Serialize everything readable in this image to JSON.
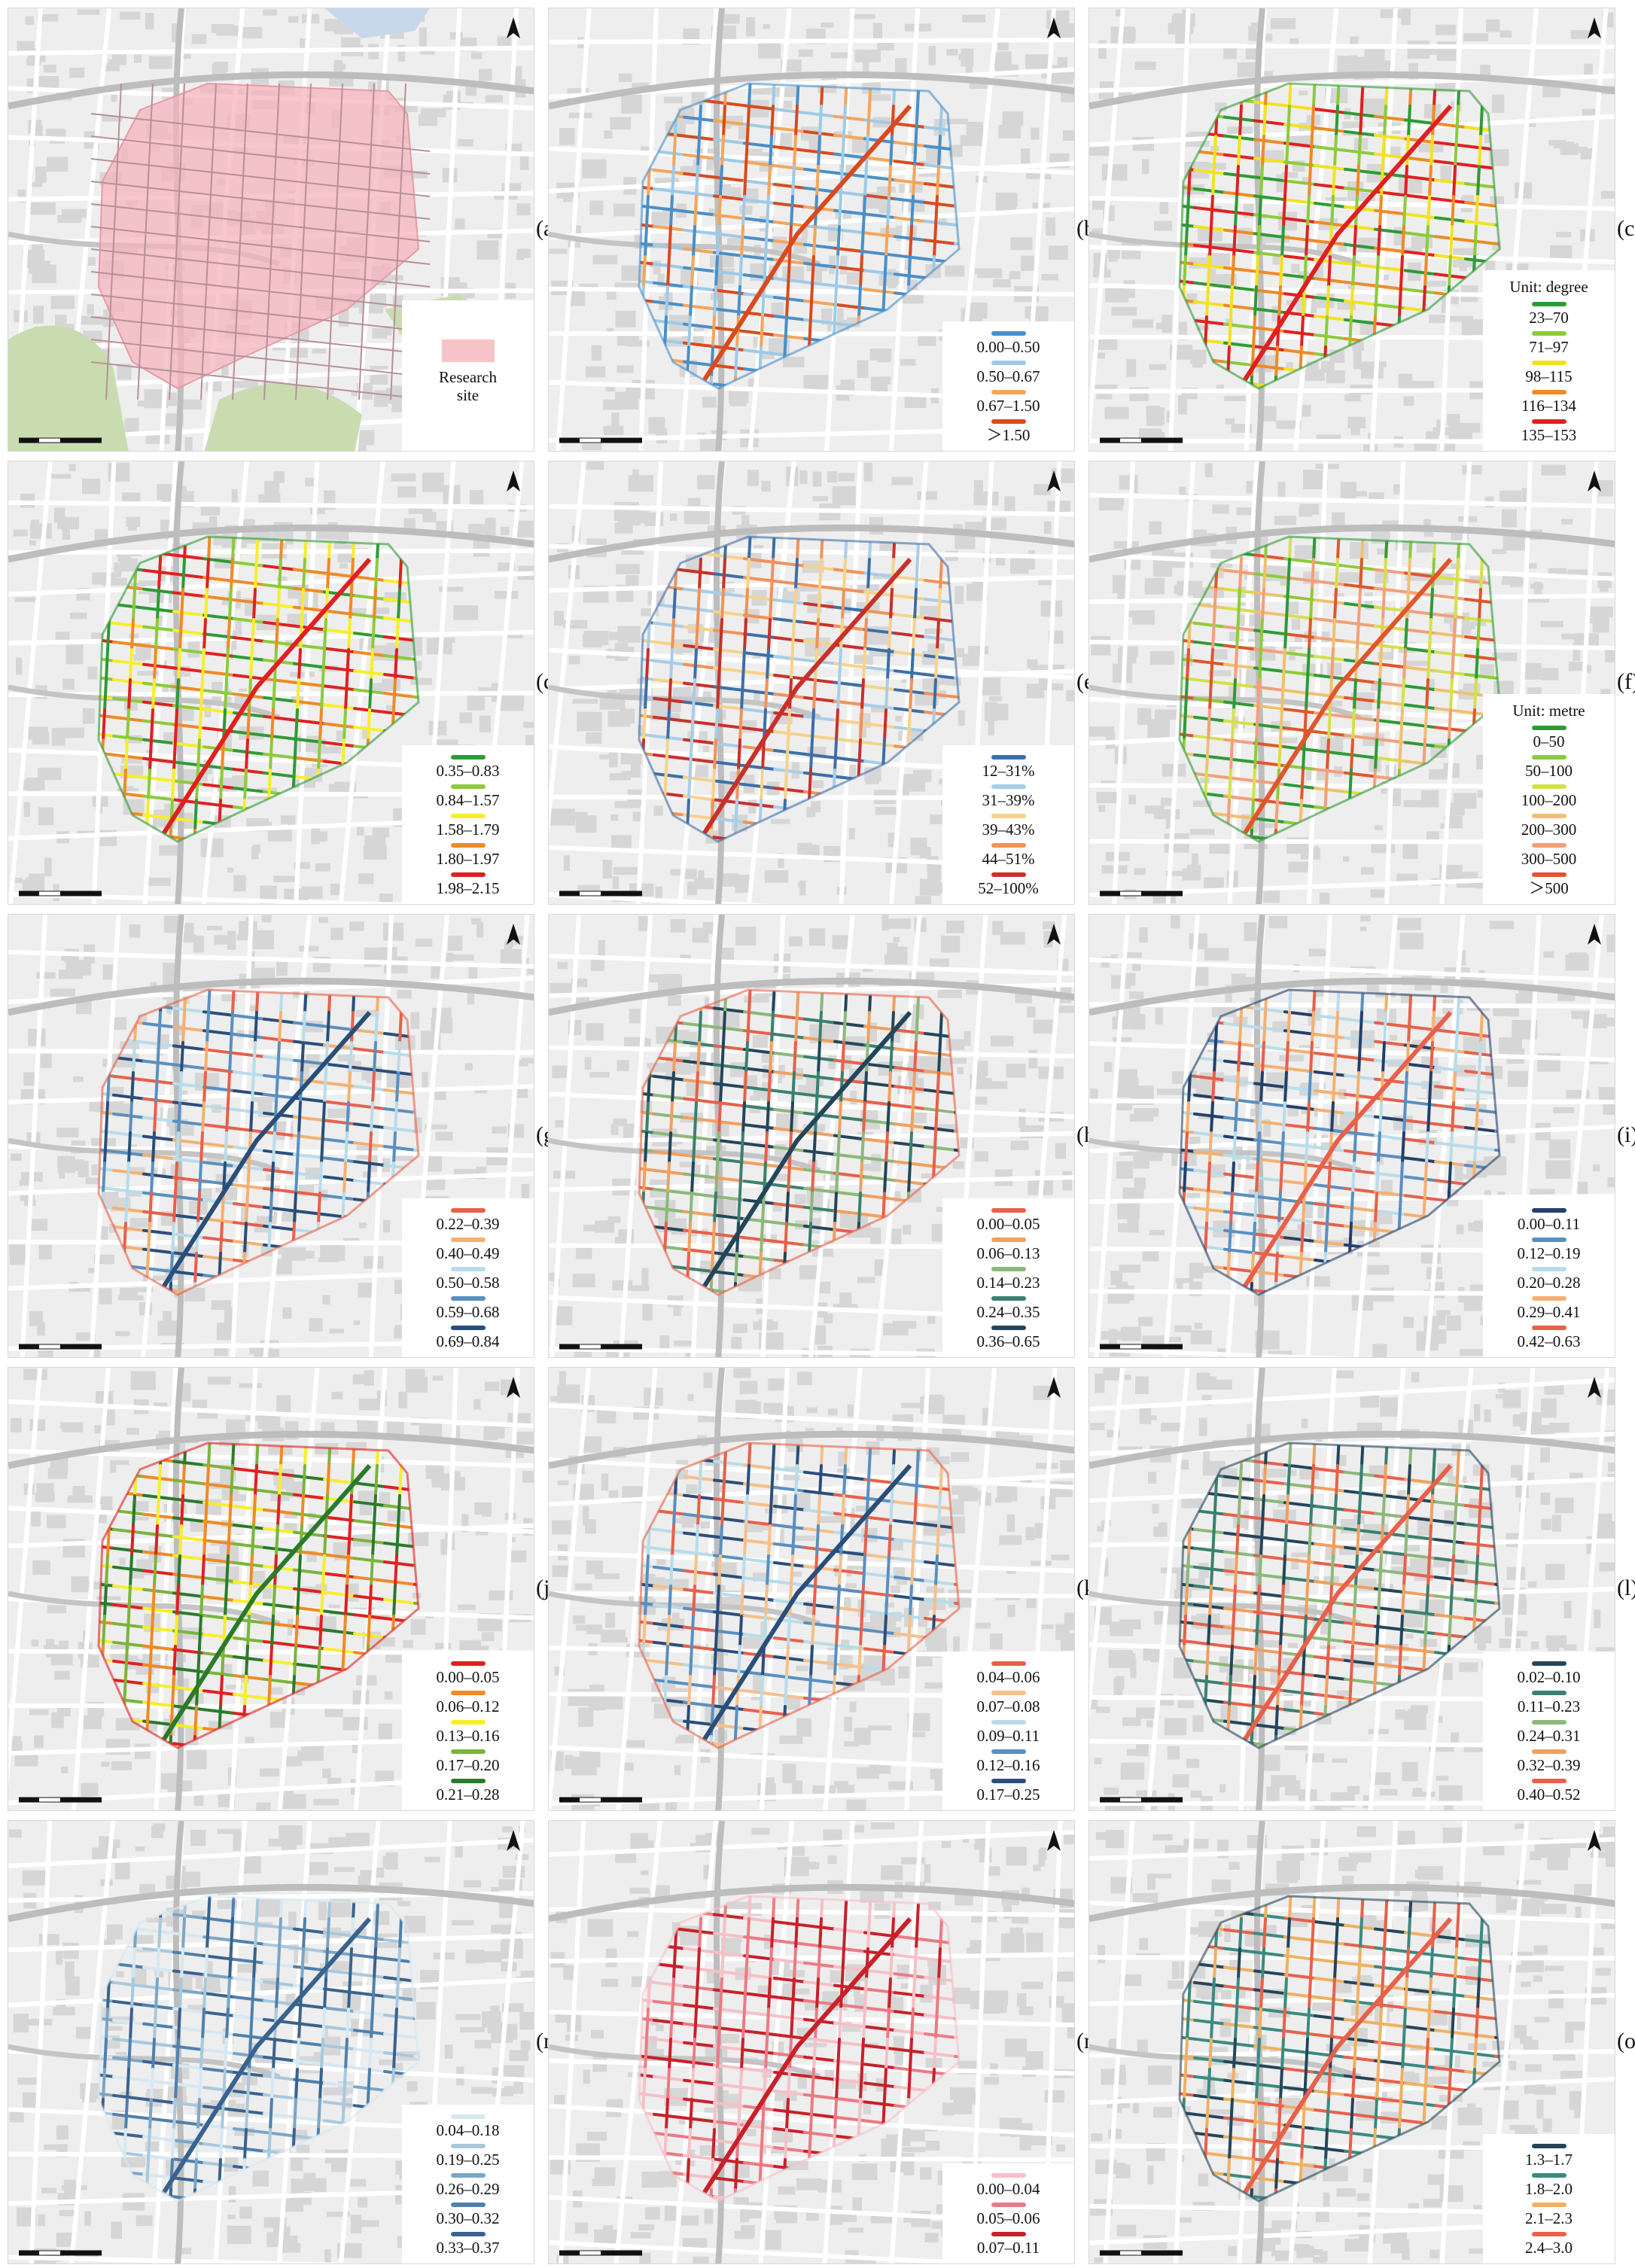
{
  "panels": [
    {
      "id": "a",
      "label": "(a)",
      "overlay": "site",
      "legend": {
        "unit": "",
        "items": [
          {
            "text": "Research\nsite",
            "color": "#f6c3c8"
          }
        ]
      }
    },
    {
      "id": "b",
      "label": "(b)",
      "legend": {
        "unit": "",
        "items": [
          {
            "text": "0.00–0.50",
            "color": "#4a8fc8"
          },
          {
            "text": "0.50–0.67",
            "color": "#9ecae6"
          },
          {
            "text": "0.67–1.50",
            "color": "#f5a55a"
          },
          {
            "text": "＞1.50",
            "color": "#d94a1e"
          }
        ]
      }
    },
    {
      "id": "c",
      "label": "(c)",
      "legend": {
        "unit": "Unit: degree",
        "items": [
          {
            "text": "23–70",
            "color": "#2e9a36"
          },
          {
            "text": "71–97",
            "color": "#8ccb3a"
          },
          {
            "text": "98–115",
            "color": "#f2e21e"
          },
          {
            "text": "116–134",
            "color": "#f08a24"
          },
          {
            "text": "135–153",
            "color": "#e02020"
          }
        ]
      }
    },
    {
      "id": "d",
      "label": "(d)",
      "legend": {
        "unit": "",
        "items": [
          {
            "text": "0.35–0.83",
            "color": "#2e9a36"
          },
          {
            "text": "0.84–1.57",
            "color": "#8ccb3a"
          },
          {
            "text": "1.58–1.79",
            "color": "#f7ee2a"
          },
          {
            "text": "1.80–1.97",
            "color": "#f08a24"
          },
          {
            "text": "1.98–2.15",
            "color": "#e02020"
          }
        ]
      }
    },
    {
      "id": "e",
      "label": "(e)",
      "legend": {
        "unit": "",
        "items": [
          {
            "text": "12–31%",
            "color": "#3d6fa8"
          },
          {
            "text": "31–39%",
            "color": "#a8cde8"
          },
          {
            "text": "39–43%",
            "color": "#f7d28a"
          },
          {
            "text": "44–51%",
            "color": "#f0925a"
          },
          {
            "text": "52–100%",
            "color": "#c8302a"
          }
        ]
      }
    },
    {
      "id": "f",
      "label": "(f)",
      "legend": {
        "unit": "Unit: metre",
        "items": [
          {
            "text": "0–50",
            "color": "#2e9a36"
          },
          {
            "text": "50–100",
            "color": "#8ccb3a"
          },
          {
            "text": "100–200",
            "color": "#d4e04a"
          },
          {
            "text": "200–300",
            "color": "#f0c070"
          },
          {
            "text": "300–500",
            "color": "#f2a07a"
          },
          {
            "text": "＞500",
            "color": "#e0562a"
          }
        ]
      }
    },
    {
      "id": "g",
      "label": "(g)",
      "legend": {
        "unit": "",
        "items": [
          {
            "text": "0.22–0.39",
            "color": "#e8604a"
          },
          {
            "text": "0.40–0.49",
            "color": "#f5b070"
          },
          {
            "text": "0.50–0.58",
            "color": "#b8dcea"
          },
          {
            "text": "0.59–0.68",
            "color": "#5a8fc0"
          },
          {
            "text": "0.69–0.84",
            "color": "#2a4e7a"
          }
        ]
      }
    },
    {
      "id": "h",
      "label": "(h)",
      "legend": {
        "unit": "",
        "items": [
          {
            "text": "0.00–0.05",
            "color": "#e8604a"
          },
          {
            "text": "0.06–0.13",
            "color": "#f0a060"
          },
          {
            "text": "0.14–0.23",
            "color": "#8cb87a"
          },
          {
            "text": "0.24–0.35",
            "color": "#3a8070"
          },
          {
            "text": "0.36–0.65",
            "color": "#24465a"
          }
        ]
      }
    },
    {
      "id": "i",
      "label": "(i)",
      "legend": {
        "unit": "",
        "items": [
          {
            "text": "0.00–0.11",
            "color": "#24406a"
          },
          {
            "text": "0.12–0.19",
            "color": "#5a8fc0"
          },
          {
            "text": "0.20–0.28",
            "color": "#b8dcea"
          },
          {
            "text": "0.29–0.41",
            "color": "#f5b070"
          },
          {
            "text": "0.42–0.63",
            "color": "#e8604a"
          }
        ]
      }
    },
    {
      "id": "j",
      "label": "(j)",
      "legend": {
        "unit": "",
        "items": [
          {
            "text": "0.00–0.05",
            "color": "#e02020"
          },
          {
            "text": "0.06–0.12",
            "color": "#f08a24"
          },
          {
            "text": "0.13–0.16",
            "color": "#f7ee2a"
          },
          {
            "text": "0.17–0.20",
            "color": "#7ab43a"
          },
          {
            "text": "0.21–0.28",
            "color": "#2a7a2a"
          }
        ]
      }
    },
    {
      "id": "k",
      "label": "(k)",
      "legend": {
        "unit": "",
        "items": [
          {
            "text": "0.04–0.06",
            "color": "#e8604a"
          },
          {
            "text": "0.07–0.08",
            "color": "#f5c08a"
          },
          {
            "text": "0.09–0.11",
            "color": "#b8dcea"
          },
          {
            "text": "0.12–0.16",
            "color": "#5a8fc0"
          },
          {
            "text": "0.17–0.25",
            "color": "#2a4e7a"
          }
        ]
      }
    },
    {
      "id": "l",
      "label": "(l)",
      "legend": {
        "unit": "",
        "items": [
          {
            "text": "0.02–0.10",
            "color": "#24465a"
          },
          {
            "text": "0.11–0.23",
            "color": "#3a8070"
          },
          {
            "text": "0.24–0.31",
            "color": "#8cb87a"
          },
          {
            "text": "0.32–0.39",
            "color": "#f0a060"
          },
          {
            "text": "0.40–0.52",
            "color": "#e8604a"
          }
        ]
      }
    },
    {
      "id": "m",
      "label": "(m)",
      "legend": {
        "unit": "",
        "items": [
          {
            "text": "0.04–0.18",
            "color": "#d6e8f2"
          },
          {
            "text": "0.19–0.25",
            "color": "#a8c8dc"
          },
          {
            "text": "0.26–0.29",
            "color": "#7aa6c6"
          },
          {
            "text": "0.30–0.32",
            "color": "#5080ac"
          },
          {
            "text": "0.33–0.37",
            "color": "#3a628e"
          }
        ]
      }
    },
    {
      "id": "n",
      "label": "(n)",
      "legend": {
        "unit": "",
        "items": [
          {
            "text": "0.00–0.04",
            "color": "#f6c0c6"
          },
          {
            "text": "0.05–0.06",
            "color": "#ec7a84"
          },
          {
            "text": "0.07–0.11",
            "color": "#c8202a"
          }
        ]
      }
    },
    {
      "id": "o",
      "label": "(o)",
      "legend": {
        "unit": "",
        "items": [
          {
            "text": "1.3–1.7",
            "color": "#24465a"
          },
          {
            "text": "1.8–2.0",
            "color": "#3a8a80"
          },
          {
            "text": "2.1–2.3",
            "color": "#f0b060"
          },
          {
            "text": "2.4–3.0",
            "color": "#e8604a"
          }
        ]
      }
    }
  ]
}
